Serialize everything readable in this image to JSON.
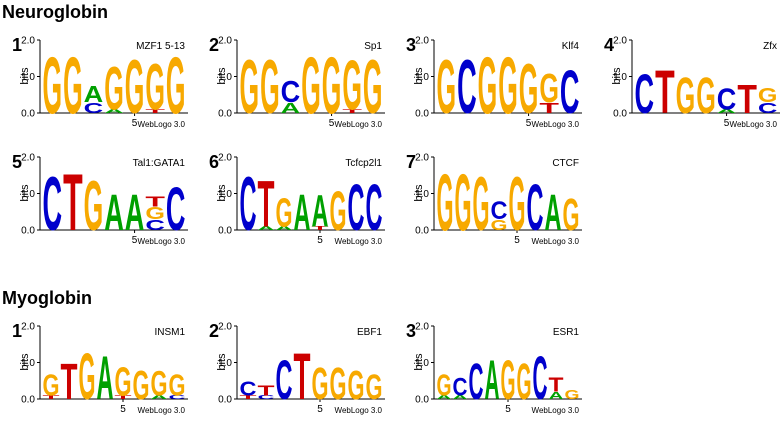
{
  "ylabel": "bits",
  "ylim": [
    0,
    2
  ],
  "yticks": [
    {
      "value": 0,
      "label": "0.0"
    },
    {
      "value": 1,
      "label": "1.0"
    },
    {
      "value": 2,
      "label": "2.0"
    }
  ],
  "xticks": [
    5
  ],
  "credit": "WebLogo 3.0",
  "colors": {
    "A": "#00a000",
    "C": "#0000cc",
    "G": "#f7a900",
    "T": "#cc0000"
  },
  "sections": [
    {
      "title": "Neuroglobin",
      "panels": [
        {
          "number": "1",
          "name": "MZF1 5-13",
          "columns": [
            [
              {
                "letter": "G",
                "bits": 1.6
              }
            ],
            [
              {
                "letter": "G",
                "bits": 1.6
              }
            ],
            [
              {
                "letter": "C",
                "bits": 0.3
              },
              {
                "letter": "A",
                "bits": 0.45
              }
            ],
            [
              {
                "letter": "A",
                "bits": 0.1
              },
              {
                "letter": "G",
                "bits": 1.2
              }
            ],
            [
              {
                "letter": "G",
                "bits": 1.5
              }
            ],
            [
              {
                "letter": "T",
                "bits": 0.1
              },
              {
                "letter": "G",
                "bits": 1.3
              }
            ],
            [
              {
                "letter": "G",
                "bits": 1.6
              }
            ]
          ]
        },
        {
          "number": "2",
          "name": "Sp1",
          "columns": [
            [
              {
                "letter": "G",
                "bits": 1.5
              }
            ],
            [
              {
                "letter": "G",
                "bits": 1.5
              }
            ],
            [
              {
                "letter": "A",
                "bits": 0.3
              },
              {
                "letter": "C",
                "bits": 0.6
              }
            ],
            [
              {
                "letter": "G",
                "bits": 1.6
              }
            ],
            [
              {
                "letter": "G",
                "bits": 1.6
              }
            ],
            [
              {
                "letter": "T",
                "bits": 0.1
              },
              {
                "letter": "G",
                "bits": 1.4
              }
            ],
            [
              {
                "letter": "G",
                "bits": 1.5
              }
            ]
          ]
        },
        {
          "number": "3",
          "name": "Klf4",
          "columns": [
            [
              {
                "letter": "G",
                "bits": 1.5
              }
            ],
            [
              {
                "letter": "C",
                "bits": 1.5
              }
            ],
            [
              {
                "letter": "G",
                "bits": 1.6
              }
            ],
            [
              {
                "letter": "G",
                "bits": 1.6
              }
            ],
            [
              {
                "letter": "G",
                "bits": 1.4
              }
            ],
            [
              {
                "letter": "T",
                "bits": 0.3
              },
              {
                "letter": "G",
                "bits": 0.8
              }
            ],
            [
              {
                "letter": "C",
                "bits": 1.2
              }
            ]
          ]
        },
        {
          "number": "4",
          "name": "Zfx",
          "columns": [
            [
              {
                "letter": "C",
                "bits": 1.1
              }
            ],
            [
              {
                "letter": "T",
                "bits": 1.2
              }
            ],
            [
              {
                "letter": "G",
                "bits": 1.0
              }
            ],
            [
              {
                "letter": "G",
                "bits": 1.0
              }
            ],
            [
              {
                "letter": "A",
                "bits": 0.1
              },
              {
                "letter": "C",
                "bits": 0.6
              }
            ],
            [
              {
                "letter": "T",
                "bits": 0.8
              }
            ],
            [
              {
                "letter": "C",
                "bits": 0.3
              },
              {
                "letter": "G",
                "bits": 0.4
              }
            ]
          ]
        },
        {
          "number": "5",
          "name": "Tal1:GATA1",
          "columns": [
            [
              {
                "letter": "C",
                "bits": 1.5
              }
            ],
            [
              {
                "letter": "T",
                "bits": 1.6
              }
            ],
            [
              {
                "letter": "G",
                "bits": 1.4
              }
            ],
            [
              {
                "letter": "A",
                "bits": 1.0
              }
            ],
            [
              {
                "letter": "A",
                "bits": 1.0
              }
            ],
            [
              {
                "letter": "C",
                "bits": 0.3
              },
              {
                "letter": "G",
                "bits": 0.35
              },
              {
                "letter": "T",
                "bits": 0.3
              }
            ],
            [
              {
                "letter": "C",
                "bits": 1.2
              }
            ]
          ]
        },
        {
          "number": "6",
          "name": "Tcfcp2l1",
          "columns": [
            [
              {
                "letter": "C",
                "bits": 1.5
              }
            ],
            [
              {
                "letter": "A",
                "bits": 0.1
              },
              {
                "letter": "T",
                "bits": 1.3
              }
            ],
            [
              {
                "letter": "A",
                "bits": 0.1
              },
              {
                "letter": "G",
                "bits": 0.8
              }
            ],
            [
              {
                "letter": "A",
                "bits": 1.0
              }
            ],
            [
              {
                "letter": "T",
                "bits": 0.1
              },
              {
                "letter": "A",
                "bits": 0.9
              }
            ],
            [
              {
                "letter": "G",
                "bits": 1.1
              }
            ],
            [
              {
                "letter": "C",
                "bits": 1.3
              }
            ],
            [
              {
                "letter": "C",
                "bits": 1.3
              }
            ]
          ]
        },
        {
          "number": "7",
          "name": "CTCF",
          "columns": [
            [
              {
                "letter": "G",
                "bits": 1.6
              }
            ],
            [
              {
                "letter": "G",
                "bits": 1.6
              }
            ],
            [
              {
                "letter": "G",
                "bits": 1.5
              }
            ],
            [
              {
                "letter": "G",
                "bits": 0.3
              },
              {
                "letter": "C",
                "bits": 0.5
              }
            ],
            [
              {
                "letter": "G",
                "bits": 1.5
              }
            ],
            [
              {
                "letter": "C",
                "bits": 1.3
              }
            ],
            [
              {
                "letter": "A",
                "bits": 1.0
              }
            ],
            [
              {
                "letter": "G",
                "bits": 0.9
              }
            ]
          ]
        }
      ]
    },
    {
      "title": "Myoglobin",
      "panels": [
        {
          "number": "1",
          "name": "INSM1",
          "columns": [
            [
              {
                "letter": "T",
                "bits": 0.1
              },
              {
                "letter": "G",
                "bits": 0.6
              }
            ],
            [
              {
                "letter": "T",
                "bits": 1.0
              }
            ],
            [
              {
                "letter": "G",
                "bits": 1.3
              }
            ],
            [
              {
                "letter": "A",
                "bits": 1.2
              }
            ],
            [
              {
                "letter": "T",
                "bits": 0.1
              },
              {
                "letter": "G",
                "bits": 0.8
              }
            ],
            [
              {
                "letter": "G",
                "bits": 0.8
              }
            ],
            [
              {
                "letter": "A",
                "bits": 0.1
              },
              {
                "letter": "G",
                "bits": 0.7
              }
            ],
            [
              {
                "letter": "C",
                "bits": 0.1
              },
              {
                "letter": "G",
                "bits": 0.6
              }
            ]
          ]
        },
        {
          "number": "2",
          "name": "EBF1",
          "columns": [
            [
              {
                "letter": "T",
                "bits": 0.1
              },
              {
                "letter": "C",
                "bits": 0.4
              }
            ],
            [
              {
                "letter": "C",
                "bits": 0.1
              },
              {
                "letter": "T",
                "bits": 0.3
              }
            ],
            [
              {
                "letter": "C",
                "bits": 1.1
              }
            ],
            [
              {
                "letter": "T",
                "bits": 1.3
              }
            ],
            [
              {
                "letter": "G",
                "bits": 0.9
              }
            ],
            [
              {
                "letter": "G",
                "bits": 0.9
              }
            ],
            [
              {
                "letter": "G",
                "bits": 0.8
              }
            ],
            [
              {
                "letter": "G",
                "bits": 0.7
              }
            ]
          ]
        },
        {
          "number": "3",
          "name": "ESR1",
          "columns": [
            [
              {
                "letter": "A",
                "bits": 0.1
              },
              {
                "letter": "G",
                "bits": 0.6
              }
            ],
            [
              {
                "letter": "A",
                "bits": 0.1
              },
              {
                "letter": "C",
                "bits": 0.5
              }
            ],
            [
              {
                "letter": "C",
                "bits": 1.0
              }
            ],
            [
              {
                "letter": "A",
                "bits": 1.1
              }
            ],
            [
              {
                "letter": "G",
                "bits": 1.1
              }
            ],
            [
              {
                "letter": "G",
                "bits": 1.0
              }
            ],
            [
              {
                "letter": "C",
                "bits": 1.2
              }
            ],
            [
              {
                "letter": "A",
                "bits": 0.2
              },
              {
                "letter": "T",
                "bits": 0.4
              }
            ],
            [
              {
                "letter": "G",
                "bits": 0.25
              }
            ]
          ]
        }
      ]
    }
  ]
}
